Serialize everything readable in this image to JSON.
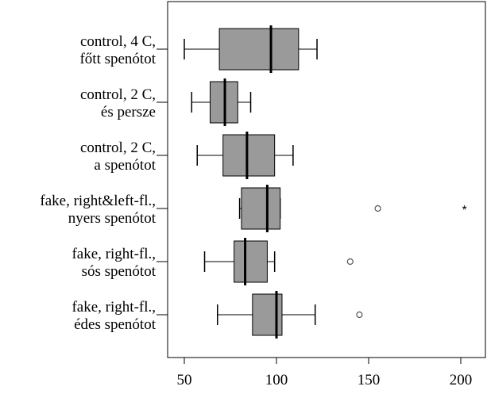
{
  "chart_data": {
    "type": "boxplot",
    "orientation": "horizontal",
    "title": "",
    "xlabel": "",
    "ylabel": "",
    "xlim": [
      45,
      208
    ],
    "xticks": [
      50,
      100,
      150,
      200
    ],
    "box_color": "#9a9a9a",
    "categories": [
      {
        "label": [
          "control, 4 C,",
          "főtt spenótot"
        ],
        "whisker_low": 50,
        "q1": 69,
        "median": 97,
        "q3": 112,
        "whisker_high": 122,
        "outliers": []
      },
      {
        "label": [
          "control, 2 C,",
          "és persze"
        ],
        "whisker_low": 54,
        "q1": 64,
        "median": 72,
        "q3": 79,
        "whisker_high": 86,
        "outliers": []
      },
      {
        "label": [
          "control, 2 C,",
          "a spenótot"
        ],
        "whisker_low": 57,
        "q1": 71,
        "median": 84,
        "q3": 99,
        "whisker_high": 109,
        "outliers": []
      },
      {
        "label": [
          "fake, right&left-fl.,",
          "nyers spenótot"
        ],
        "whisker_low": 80,
        "q1": 81,
        "median": 95,
        "q3": 102,
        "whisker_high": 102,
        "outliers": [
          {
            "value": 155,
            "marker": "circle"
          },
          {
            "value": 202,
            "marker": "star"
          }
        ]
      },
      {
        "label": [
          "fake, right-fl.,",
          "sós spenótot"
        ],
        "whisker_low": 61,
        "q1": 77,
        "median": 83,
        "q3": 95,
        "whisker_high": 99,
        "outliers": [
          {
            "value": 140,
            "marker": "circle"
          }
        ]
      },
      {
        "label": [
          "fake, right-fl.,",
          "édes spenótot"
        ],
        "whisker_low": 68,
        "q1": 87,
        "median": 100,
        "q3": 103,
        "whisker_high": 121,
        "outliers": [
          {
            "value": 145,
            "marker": "circle"
          }
        ]
      }
    ]
  }
}
